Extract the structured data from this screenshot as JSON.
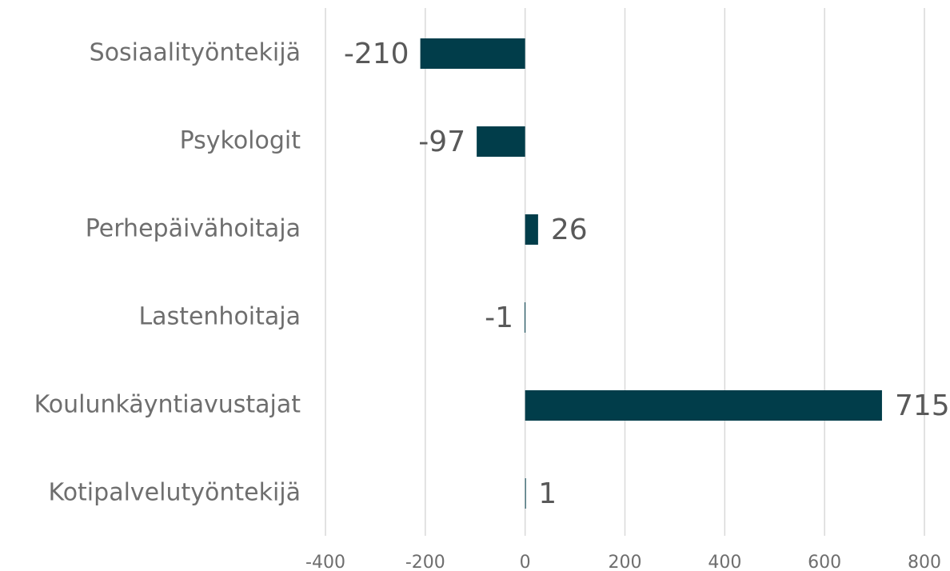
{
  "chart_data": {
    "type": "barh",
    "categories": [
      "Sosiaalityöntekijä",
      "Psykologit",
      "Perhepäivähoitaja",
      "Lastenhoitaja",
      "Koulunkäyntiavustajat",
      "Kotipalvelutyöntekijä"
    ],
    "values": [
      -210,
      -97,
      26,
      -1,
      715,
      1
    ],
    "color": "#013d4a",
    "xlim": [
      -400,
      800
    ],
    "xticks": [
      -400,
      -200,
      0,
      200,
      400,
      600,
      800
    ],
    "grid": true
  }
}
